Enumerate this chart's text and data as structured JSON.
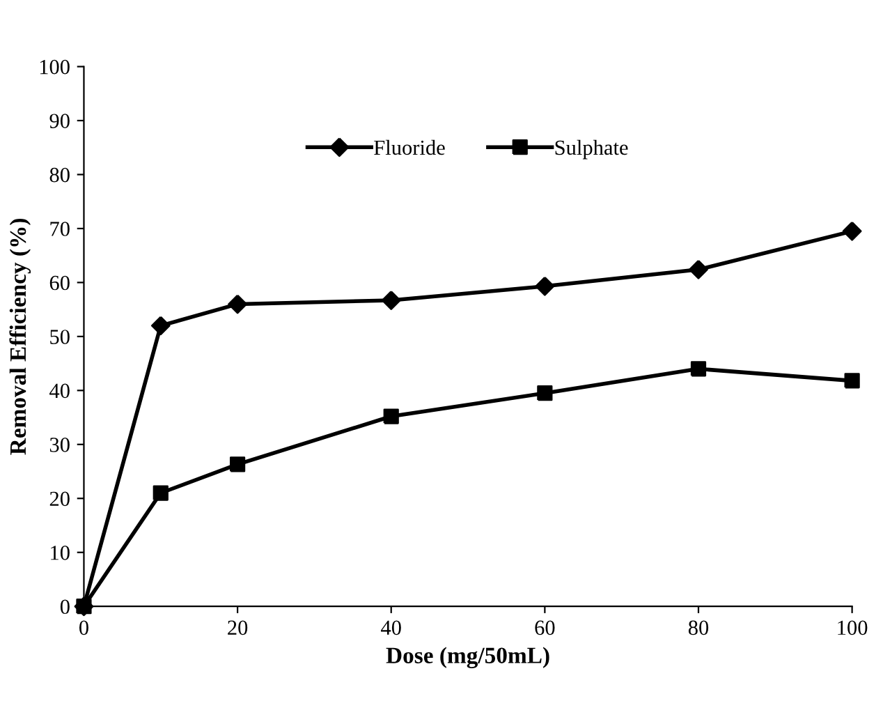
{
  "chart_data": {
    "type": "line",
    "xlabel": "Dose (mg/50mL)",
    "ylabel": "Removal Efficiency (%)",
    "x": [
      0,
      10,
      20,
      40,
      60,
      80,
      100
    ],
    "series": [
      {
        "name": "Fluoride",
        "color": "#000000",
        "marker": "diamond",
        "values": [
          0,
          52,
          56,
          56.7,
          59.3,
          62.4,
          69.5
        ]
      },
      {
        "name": "Sulphate",
        "color": "#000000",
        "marker": "square",
        "values": [
          0,
          21,
          26.3,
          35.2,
          39.5,
          44,
          41.8
        ]
      }
    ],
    "xlim": [
      0,
      100
    ],
    "xticks": [
      0,
      20,
      40,
      60,
      80,
      100
    ],
    "ylim": [
      0,
      100
    ],
    "yticks": [
      0,
      10,
      20,
      30,
      40,
      50,
      60,
      70,
      80,
      90,
      100
    ],
    "grid": false,
    "legend": "top",
    "line_style": "solid"
  }
}
